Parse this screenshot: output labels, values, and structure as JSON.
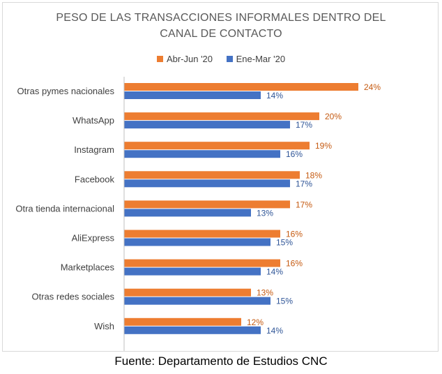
{
  "title_line1": "PESO DE LAS TRANSACCIONES  INFORMALES DENTRO DEL",
  "title_line2": "CANAL DE CONTACTO",
  "source": "Fuente: Departamento de Estudios CNC",
  "colors": {
    "abr_jun": "#ED7D31",
    "ene_mar": "#4472C4",
    "label_abr_jun": "#C55A11",
    "label_ene_mar": "#2F5597"
  },
  "chart_data": {
    "type": "bar",
    "orientation": "horizontal",
    "categories": [
      "Otras pymes nacionales",
      "WhatsApp",
      "Instagram",
      "Facebook",
      "Otra tienda internacional",
      "AliExpress",
      "Marketplaces",
      "Otras redes sociales",
      "Wish"
    ],
    "series": [
      {
        "name": "Abr-Jun '20",
        "values": [
          24,
          20,
          19,
          18,
          17,
          16,
          16,
          13,
          12
        ],
        "labels": [
          "24%",
          "20%",
          "19%",
          "18%",
          "17%",
          "16%",
          "16%",
          "13%",
          "12%"
        ]
      },
      {
        "name": "Ene-Mar '20",
        "values": [
          14,
          17,
          16,
          17,
          13,
          15,
          14,
          15,
          14
        ],
        "labels": [
          "14%",
          "17%",
          "16%",
          "17%",
          "13%",
          "15%",
          "14%",
          "15%",
          "14%"
        ]
      }
    ],
    "xlim": [
      0,
      27
    ],
    "legend_position": "top",
    "grid": false
  }
}
